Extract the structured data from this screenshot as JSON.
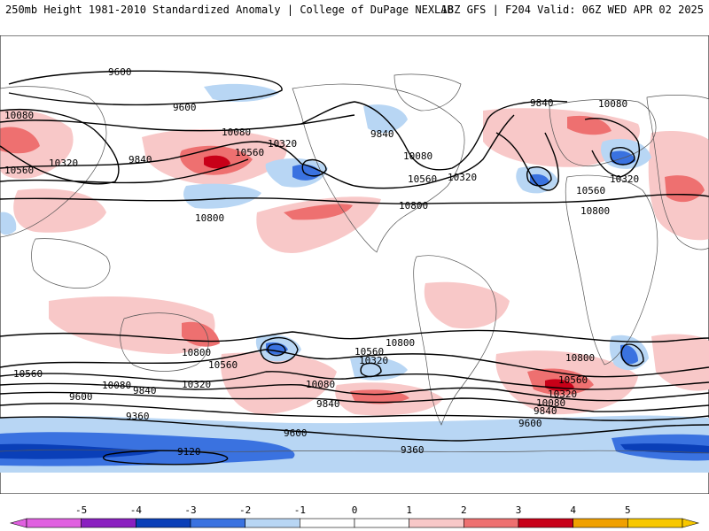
{
  "header": {
    "title_left": "250mb Height 1981-2010 Standardized Anomaly | College of DuPage NEXLAB",
    "title_right": "18Z GFS | F204 Valid: 06Z WED APR 02 2025"
  },
  "colors": {
    "neg5": "#e060e0",
    "neg4": "#8a1fc0",
    "neg3": "#0a3fb8",
    "neg2": "#3a72e0",
    "neg1": "#b8d6f4",
    "neutral": "#ffffff",
    "pos1": "#f8c8c8",
    "pos2": "#ee7070",
    "pos3": "#c80018",
    "pos4": "#f0a000",
    "pos5": "#f8c800"
  },
  "colorbar": {
    "ticks": [
      "-5",
      "-4",
      "-3",
      "-2",
      "-1",
      "0",
      "1",
      "2",
      "3",
      "4",
      "5"
    ]
  },
  "contour_labels": [
    {
      "id": "c1",
      "text": "9600"
    },
    {
      "id": "c2",
      "text": "9600"
    },
    {
      "id": "c3",
      "text": "10080"
    },
    {
      "id": "c4",
      "text": "10080"
    },
    {
      "id": "c5",
      "text": "10320"
    },
    {
      "id": "c6",
      "text": "10560"
    },
    {
      "id": "c7",
      "text": "9840"
    },
    {
      "id": "c8",
      "text": "10320"
    },
    {
      "id": "c9",
      "text": "10560"
    },
    {
      "id": "c10",
      "text": "10800"
    },
    {
      "id": "c11",
      "text": "9840"
    },
    {
      "id": "c12",
      "text": "10080"
    },
    {
      "id": "c13",
      "text": "10560"
    },
    {
      "id": "c14",
      "text": "10320"
    },
    {
      "id": "c15",
      "text": "10800"
    },
    {
      "id": "c16",
      "text": "9840"
    },
    {
      "id": "c17",
      "text": "10080"
    },
    {
      "id": "c18",
      "text": "10560"
    },
    {
      "id": "c19",
      "text": "10320"
    },
    {
      "id": "c20",
      "text": "10800"
    },
    {
      "id": "c21",
      "text": "10800"
    },
    {
      "id": "c22",
      "text": "10560"
    },
    {
      "id": "c23",
      "text": "10560"
    },
    {
      "id": "c24",
      "text": "10320"
    },
    {
      "id": "c25",
      "text": "10800"
    },
    {
      "id": "c26",
      "text": "10560"
    },
    {
      "id": "c27",
      "text": "10320"
    },
    {
      "id": "c28",
      "text": "10080"
    },
    {
      "id": "c29",
      "text": "9840"
    },
    {
      "id": "c30",
      "text": "10080"
    },
    {
      "id": "c31",
      "text": "9840"
    },
    {
      "id": "c32",
      "text": "9600"
    },
    {
      "id": "c33",
      "text": "9360"
    },
    {
      "id": "c34",
      "text": "9600"
    },
    {
      "id": "c35",
      "text": "9360"
    },
    {
      "id": "c36",
      "text": "9120"
    },
    {
      "id": "c37",
      "text": "10800"
    },
    {
      "id": "c38",
      "text": "10560"
    },
    {
      "id": "c39",
      "text": "10320"
    },
    {
      "id": "c40",
      "text": "10080"
    },
    {
      "id": "c41",
      "text": "9840"
    },
    {
      "id": "c42",
      "text": "9600"
    }
  ]
}
